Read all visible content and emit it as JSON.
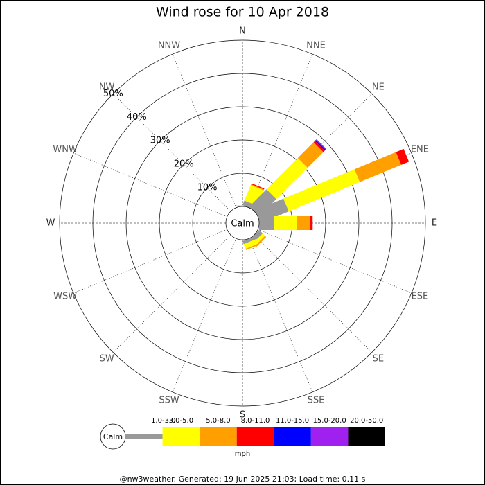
{
  "chart_data": {
    "type": "wind_rose",
    "title": "Wind rose for 10 Apr 2018",
    "directions": [
      "N",
      "NNE",
      "NE",
      "ENE",
      "E",
      "ESE",
      "SE",
      "SSE",
      "S",
      "SSW",
      "SW",
      "WSW",
      "W",
      "WNW",
      "NW",
      "NNW"
    ],
    "rlim": [
      0,
      50
    ],
    "rticks": [
      {
        "value": 10,
        "label": "10%"
      },
      {
        "value": 20,
        "label": "20%"
      },
      {
        "value": 30,
        "label": "30%"
      },
      {
        "value": 40,
        "label": "40%"
      },
      {
        "value": 50,
        "label": "50%"
      }
    ],
    "calm_label": "Calm",
    "legend_title": "mph",
    "series": [
      {
        "name": "1.0-3.0",
        "color": "#999999",
        "values": [
          0,
          1.5,
          7.3,
          9.2,
          4.4,
          0,
          1.5,
          1.0,
          0,
          0,
          0,
          0,
          0,
          0,
          0,
          0
        ]
      },
      {
        "name": "3.0-5.0",
        "color": "#ffff00",
        "values": [
          0.4,
          5.0,
          13.3,
          23.1,
          6.9,
          0,
          1.0,
          1.5,
          0,
          0,
          0,
          0,
          0,
          0,
          0,
          0
        ]
      },
      {
        "name": "5.0-8.0",
        "color": "#ffa000",
        "values": [
          0,
          0.3,
          6.7,
          13.5,
          4.0,
          0,
          0.5,
          0.4,
          0,
          0,
          0,
          0,
          0,
          0,
          0,
          0
        ]
      },
      {
        "name": "8.0-11.0",
        "color": "#ff0000",
        "values": [
          0,
          0.3,
          0.6,
          2.5,
          0.8,
          0,
          0,
          0,
          0,
          0,
          0,
          0,
          0,
          0,
          0,
          0
        ]
      },
      {
        "name": "11.0-15.0",
        "color": "#0000ff",
        "values": [
          0,
          0,
          0.4,
          0,
          0,
          0,
          0,
          0,
          0,
          0,
          0,
          0,
          0,
          0,
          0,
          0
        ]
      },
      {
        "name": "15.0-20.0",
        "color": "#a020f0",
        "values": [
          0,
          0,
          0.3,
          0,
          0,
          0,
          0,
          0,
          0,
          0,
          0,
          0,
          0,
          0,
          0,
          0
        ]
      },
      {
        "name": "20.0-50.0",
        "color": "#000000",
        "values": [
          0,
          0,
          0,
          0,
          0,
          0,
          0,
          0,
          0,
          0,
          0,
          0,
          0,
          0,
          0,
          0
        ]
      }
    ],
    "footer": "@nw3weather. Generated: 19 Jun 2025 21:03; Load time: 0.11 s"
  }
}
